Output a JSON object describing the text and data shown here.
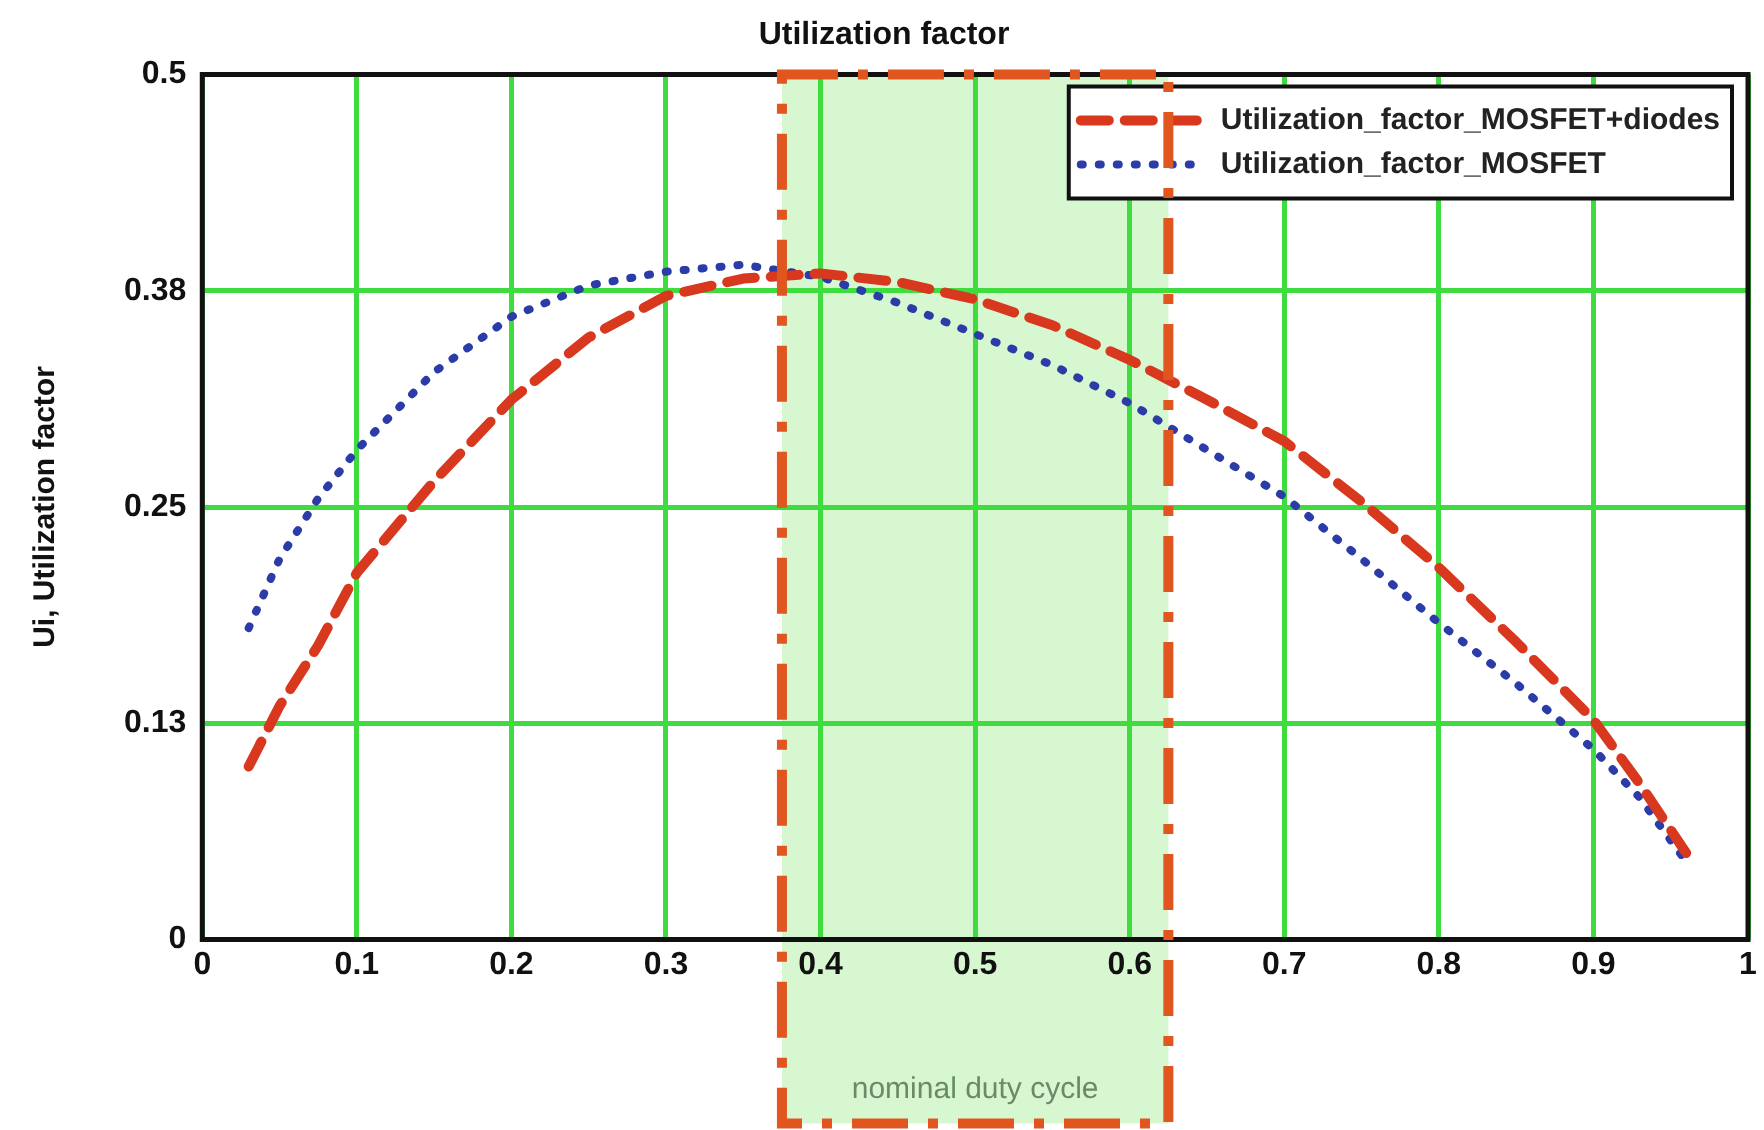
{
  "chart_data": {
    "type": "line",
    "title": "Utilization factor",
    "ylabel": "Ui, Utilization factor",
    "xlim": [
      0,
      1
    ],
    "xticks": [
      0,
      0.1,
      0.2,
      0.3,
      0.4,
      0.5,
      0.6,
      0.7,
      0.8,
      0.9,
      1
    ],
    "ylim": [
      0,
      0.5
    ],
    "yticks": [
      0,
      {
        "value": 0.125,
        "label": "0.13"
      },
      0.25,
      {
        "value": 0.375,
        "label": "0.38"
      },
      0.5
    ],
    "grid": true,
    "legend": "top right",
    "bands": [
      {
        "axis": "x",
        "from": 0.375,
        "to": 0.625,
        "label": "nominal duty cycle",
        "color": "#d6f7d0"
      }
    ],
    "series": [
      {
        "name": "Utilization_factor_MOSFET+diodes",
        "color": "#d8391e",
        "line_style": "dashed",
        "x": [
          0.03,
          0.05,
          0.075,
          0.1,
          0.15,
          0.2,
          0.25,
          0.3,
          0.35,
          0.4,
          0.45,
          0.5,
          0.55,
          0.6,
          0.65,
          0.7,
          0.75,
          0.8,
          0.85,
          0.9,
          0.93,
          0.96
        ],
        "values": [
          0.1,
          0.135,
          0.17,
          0.212,
          0.265,
          0.312,
          0.348,
          0.372,
          0.382,
          0.385,
          0.38,
          0.37,
          0.355,
          0.335,
          0.312,
          0.288,
          0.253,
          0.215,
          0.172,
          0.127,
          0.09,
          0.05
        ]
      },
      {
        "name": "Utilization_factor_MOSFET",
        "color": "#2b3ba8",
        "line_style": "dotted",
        "x": [
          0.03,
          0.05,
          0.075,
          0.1,
          0.15,
          0.2,
          0.25,
          0.3,
          0.35,
          0.4,
          0.45,
          0.5,
          0.55,
          0.6,
          0.65,
          0.7,
          0.75,
          0.8,
          0.85,
          0.9,
          0.93,
          0.96
        ],
        "values": [
          0.18,
          0.22,
          0.255,
          0.283,
          0.328,
          0.36,
          0.378,
          0.386,
          0.39,
          0.383,
          0.368,
          0.35,
          0.332,
          0.31,
          0.283,
          0.256,
          0.22,
          0.183,
          0.148,
          0.11,
          0.082,
          0.045
        ]
      }
    ]
  }
}
